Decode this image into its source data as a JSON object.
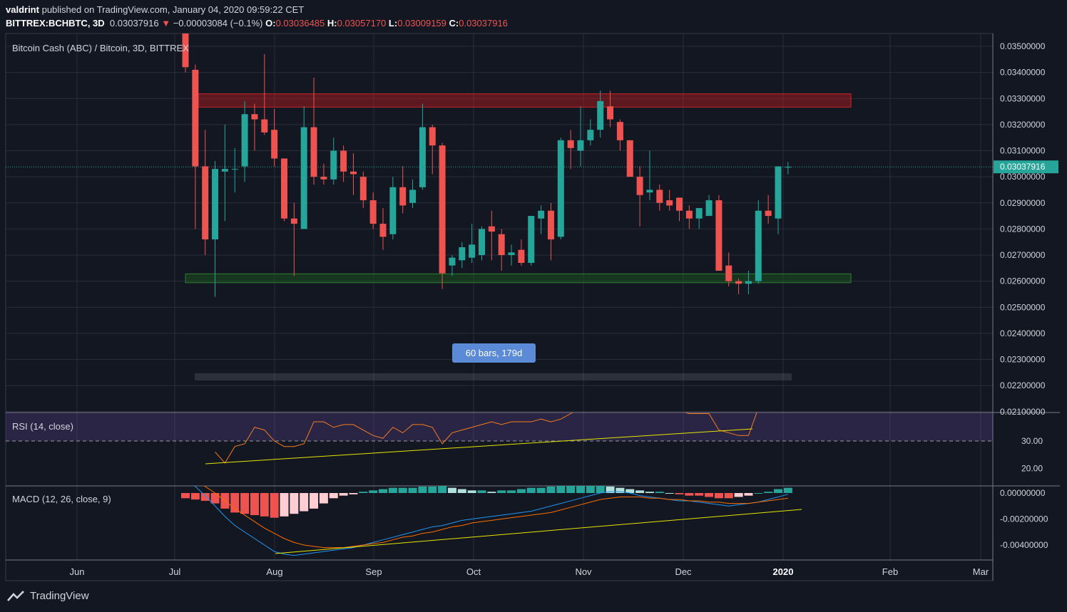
{
  "header": {
    "author": "valdrint",
    "published_text": "published on TradingView.com, January 04, 2020 09:59:22 CET",
    "symbol": "BITTREX:BCHBTC, 3D",
    "last": "0.03037916",
    "change": "−0.00003084 (−0.1%)",
    "o_label": "O:",
    "o_value": "0.03036485",
    "h_label": "H:",
    "h_value": "0.03057170",
    "l_label": "L:",
    "l_value": "0.03009159",
    "c_label": "C:",
    "c_value": "0.03037916"
  },
  "colors": {
    "background": "#131722",
    "grid": "#2a2e39",
    "up": "#26a69a",
    "down": "#ef5350",
    "resistance_zone": "#b71c1c",
    "support_zone": "#1b5e20",
    "rsi_line": "#f57c1f",
    "trendline": "#e6e600",
    "macd_line": "#2196f3",
    "signal_line": "#ff6d00"
  },
  "footer": {
    "brand": "TradingView"
  },
  "chart_data": {
    "type": "candlestick",
    "title": "Bitcoin Cash (ABC) / Bitcoin, 3D, BITTREX",
    "price_axis": {
      "ticks": [
        "0.03500000",
        "0.03400000",
        "0.03300000",
        "0.03200000",
        "0.03100000",
        "0.03000000",
        "0.02900000",
        "0.02800000",
        "0.02700000",
        "0.02600000",
        "0.02500000",
        "0.02400000",
        "0.02300000",
        "0.02200000",
        "0.02100000"
      ],
      "last_price_label": "0.03037916",
      "last_price": 0.03037916
    },
    "x_axis": {
      "labels": [
        "Jun",
        "Jul",
        "Aug",
        "Sep",
        "Oct",
        "Nov",
        "Dec",
        "2020",
        "Feb",
        "Mar"
      ]
    },
    "candles": [
      {
        "o": 0.0357,
        "h": 0.036,
        "l": 0.034,
        "c": 0.0342
      },
      {
        "o": 0.0341,
        "h": 0.0343,
        "l": 0.028,
        "c": 0.0304
      },
      {
        "o": 0.0304,
        "h": 0.0318,
        "l": 0.027,
        "c": 0.0276
      },
      {
        "o": 0.0276,
        "h": 0.0306,
        "l": 0.0254,
        "c": 0.0303
      },
      {
        "o": 0.0302,
        "h": 0.032,
        "l": 0.0283,
        "c": 0.0303
      },
      {
        "o": 0.0303,
        "h": 0.0311,
        "l": 0.0294,
        "c": 0.0303
      },
      {
        "o": 0.0304,
        "h": 0.0329,
        "l": 0.0298,
        "c": 0.0324
      },
      {
        "o": 0.0324,
        "h": 0.0328,
        "l": 0.031,
        "c": 0.0322
      },
      {
        "o": 0.0322,
        "h": 0.0347,
        "l": 0.0316,
        "c": 0.0317
      },
      {
        "o": 0.0318,
        "h": 0.0326,
        "l": 0.0304,
        "c": 0.0307
      },
      {
        "o": 0.0307,
        "h": 0.0307,
        "l": 0.0283,
        "c": 0.0284
      },
      {
        "o": 0.0284,
        "h": 0.029,
        "l": 0.0262,
        "c": 0.0282
      },
      {
        "o": 0.028,
        "h": 0.0327,
        "l": 0.028,
        "c": 0.0319
      },
      {
        "o": 0.0319,
        "h": 0.0338,
        "l": 0.0297,
        "c": 0.03
      },
      {
        "o": 0.03,
        "h": 0.0305,
        "l": 0.0297,
        "c": 0.0299
      },
      {
        "o": 0.0299,
        "h": 0.0315,
        "l": 0.0297,
        "c": 0.031
      },
      {
        "o": 0.031,
        "h": 0.0312,
        "l": 0.0298,
        "c": 0.0302
      },
      {
        "o": 0.0302,
        "h": 0.0309,
        "l": 0.0293,
        "c": 0.0301
      },
      {
        "o": 0.03,
        "h": 0.0302,
        "l": 0.0288,
        "c": 0.0291
      },
      {
        "o": 0.0291,
        "h": 0.0294,
        "l": 0.028,
        "c": 0.0282
      },
      {
        "o": 0.0282,
        "h": 0.0288,
        "l": 0.0272,
        "c": 0.0277
      },
      {
        "o": 0.0278,
        "h": 0.03,
        "l": 0.0276,
        "c": 0.0296
      },
      {
        "o": 0.0296,
        "h": 0.0304,
        "l": 0.0286,
        "c": 0.0289
      },
      {
        "o": 0.029,
        "h": 0.0299,
        "l": 0.0288,
        "c": 0.0295
      },
      {
        "o": 0.0296,
        "h": 0.0328,
        "l": 0.0295,
        "c": 0.0319
      },
      {
        "o": 0.0319,
        "h": 0.032,
        "l": 0.0301,
        "c": 0.0312
      },
      {
        "o": 0.0312,
        "h": 0.0313,
        "l": 0.0257,
        "c": 0.0263
      },
      {
        "o": 0.0266,
        "h": 0.027,
        "l": 0.0262,
        "c": 0.0269
      },
      {
        "o": 0.0268,
        "h": 0.0275,
        "l": 0.0265,
        "c": 0.0273
      },
      {
        "o": 0.0269,
        "h": 0.0282,
        "l": 0.0267,
        "c": 0.0274
      },
      {
        "o": 0.027,
        "h": 0.0281,
        "l": 0.0268,
        "c": 0.028
      },
      {
        "o": 0.0281,
        "h": 0.0287,
        "l": 0.0268,
        "c": 0.0279
      },
      {
        "o": 0.0278,
        "h": 0.028,
        "l": 0.0264,
        "c": 0.027
      },
      {
        "o": 0.027,
        "h": 0.0274,
        "l": 0.0266,
        "c": 0.0271
      },
      {
        "o": 0.0272,
        "h": 0.0276,
        "l": 0.0266,
        "c": 0.0267
      },
      {
        "o": 0.0267,
        "h": 0.0285,
        "l": 0.0266,
        "c": 0.0285
      },
      {
        "o": 0.0284,
        "h": 0.0289,
        "l": 0.0278,
        "c": 0.0287
      },
      {
        "o": 0.0287,
        "h": 0.029,
        "l": 0.0268,
        "c": 0.0276
      },
      {
        "o": 0.0277,
        "h": 0.0315,
        "l": 0.0276,
        "c": 0.0314
      },
      {
        "o": 0.0314,
        "h": 0.0318,
        "l": 0.0303,
        "c": 0.0311
      },
      {
        "o": 0.031,
        "h": 0.0327,
        "l": 0.0304,
        "c": 0.0314
      },
      {
        "o": 0.0314,
        "h": 0.0322,
        "l": 0.0312,
        "c": 0.0318
      },
      {
        "o": 0.0318,
        "h": 0.0333,
        "l": 0.0315,
        "c": 0.0329
      },
      {
        "o": 0.0327,
        "h": 0.0333,
        "l": 0.0319,
        "c": 0.0322
      },
      {
        "o": 0.0321,
        "h": 0.0322,
        "l": 0.031,
        "c": 0.0314
      },
      {
        "o": 0.0314,
        "h": 0.0314,
        "l": 0.03,
        "c": 0.03
      },
      {
        "o": 0.03,
        "h": 0.0304,
        "l": 0.0281,
        "c": 0.0293
      },
      {
        "o": 0.0294,
        "h": 0.031,
        "l": 0.0291,
        "c": 0.0295
      },
      {
        "o": 0.0295,
        "h": 0.0297,
        "l": 0.0287,
        "c": 0.029
      },
      {
        "o": 0.0291,
        "h": 0.0295,
        "l": 0.0287,
        "c": 0.0289
      },
      {
        "o": 0.0292,
        "h": 0.0292,
        "l": 0.0283,
        "c": 0.0287
      },
      {
        "o": 0.0287,
        "h": 0.0289,
        "l": 0.028,
        "c": 0.0284
      },
      {
        "o": 0.0284,
        "h": 0.0288,
        "l": 0.028,
        "c": 0.0288
      },
      {
        "o": 0.0285,
        "h": 0.0293,
        "l": 0.0285,
        "c": 0.0291
      },
      {
        "o": 0.0291,
        "h": 0.0293,
        "l": 0.0264,
        "c": 0.0264
      },
      {
        "o": 0.0266,
        "h": 0.0271,
        "l": 0.0258,
        "c": 0.026
      },
      {
        "o": 0.026,
        "h": 0.0261,
        "l": 0.0255,
        "c": 0.0259
      },
      {
        "o": 0.0259,
        "h": 0.0264,
        "l": 0.0255,
        "c": 0.026
      },
      {
        "o": 0.026,
        "h": 0.0291,
        "l": 0.0259,
        "c": 0.0287
      },
      {
        "o": 0.0287,
        "h": 0.0293,
        "l": 0.0282,
        "c": 0.0285
      },
      {
        "o": 0.0284,
        "h": 0.0304,
        "l": 0.0278,
        "c": 0.0304
      },
      {
        "o": 0.03036485,
        "h": 0.0305717,
        "l": 0.03009159,
        "c": 0.03037916
      }
    ],
    "zones": [
      {
        "name": "resistance",
        "low": 0.03267,
        "high": 0.03318
      },
      {
        "name": "support",
        "low": 0.02594,
        "high": 0.02628
      }
    ],
    "range_label": "60 bars, 179d",
    "rsi": {
      "label": "RSI (14, close)",
      "levels": [
        "30.00",
        "20.00"
      ],
      "values": [
        null,
        null,
        null,
        26,
        22,
        28,
        29,
        35,
        34,
        30,
        28,
        28,
        29,
        37,
        37,
        35,
        36,
        36,
        34,
        32,
        31,
        35,
        33,
        36,
        36,
        35,
        29,
        33,
        34,
        35,
        36,
        37,
        36,
        37,
        37,
        37,
        38,
        37,
        38,
        40,
        42,
        44,
        45,
        46,
        48,
        46,
        45,
        44,
        43,
        42,
        41,
        40,
        40,
        40,
        34,
        33,
        32,
        32,
        42,
        44,
        45,
        46
      ]
    },
    "macd": {
      "label": "MACD (12, 26, close, 9)",
      "ticks": [
        "0.00000000",
        "-0.00200000",
        "-0.00400000"
      ],
      "histogram": [
        -0.0004,
        -0.0005,
        -0.0006,
        -0.0008,
        -0.0012,
        -0.0015,
        -0.0016,
        -0.0017,
        -0.0018,
        -0.0019,
        -0.0018,
        -0.0016,
        -0.0014,
        -0.0012,
        -0.0008,
        -0.0004,
        -0.0002,
        -0.0001,
        0.0001,
        0.0002,
        0.0003,
        0.0004,
        0.0004,
        0.0004,
        0.0005,
        0.0005,
        0.0006,
        0.0004,
        0.0003,
        0.0002,
        0.0002,
        0.0001,
        0.0002,
        0.0002,
        0.0003,
        0.0004,
        0.0004,
        0.0005,
        0.0006,
        0.0006,
        0.0006,
        0.0006,
        0.0006,
        0.0005,
        0.0004,
        0.0003,
        0.0002,
        0.0001,
        0.0001,
        0.0,
        -0.0001,
        -0.0002,
        -0.0002,
        -0.0003,
        -0.0004,
        -0.0004,
        -0.0003,
        -0.0002,
        0.0,
        0.0001,
        0.0003,
        0.0004
      ],
      "macd_line": [
        0.001,
        0.0005,
        -0.0002,
        -0.001,
        -0.0018,
        -0.0025,
        -0.003,
        -0.0035,
        -0.004,
        -0.0045,
        -0.0047,
        -0.0048,
        -0.0047,
        -0.0046,
        -0.0045,
        -0.0044,
        -0.0043,
        -0.0042,
        -0.004,
        -0.0038,
        -0.0036,
        -0.0034,
        -0.0032,
        -0.003,
        -0.0028,
        -0.0026,
        -0.0025,
        -0.0023,
        -0.0021,
        -0.002,
        -0.0019,
        -0.0018,
        -0.0017,
        -0.0016,
        -0.0015,
        -0.0014,
        -0.0012,
        -0.001,
        -0.0008,
        -0.0006,
        -0.0004,
        -0.0002,
        0.0,
        0.0001,
        0.0001,
        0.0,
        -0.0002,
        -0.0003,
        -0.0004,
        -0.0005,
        -0.0006,
        -0.0006,
        -0.0007,
        -0.0008,
        -0.0009,
        -0.001,
        -0.0009,
        -0.0008,
        -0.0007,
        -0.0005,
        -0.0003,
        -0.0001
      ],
      "signal_line": [
        0.0014,
        0.001,
        0.0005,
        0.0,
        -0.0006,
        -0.0012,
        -0.0017,
        -0.0022,
        -0.0027,
        -0.0031,
        -0.0035,
        -0.0038,
        -0.004,
        -0.0041,
        -0.0042,
        -0.0042,
        -0.0042,
        -0.0041,
        -0.004,
        -0.0039,
        -0.0038,
        -0.0036,
        -0.0034,
        -0.0033,
        -0.0031,
        -0.003,
        -0.0028,
        -0.0026,
        -0.0025,
        -0.0023,
        -0.0022,
        -0.0021,
        -0.002,
        -0.0019,
        -0.0018,
        -0.0017,
        -0.0016,
        -0.0015,
        -0.0013,
        -0.0011,
        -0.0009,
        -0.0007,
        -0.0005,
        -0.0004,
        -0.0003,
        -0.0003,
        -0.0003,
        -0.0004,
        -0.0004,
        -0.0005,
        -0.0005,
        -0.0006,
        -0.0006,
        -0.0007,
        -0.0007,
        -0.0008,
        -0.0008,
        -0.0008,
        -0.0007,
        -0.0006,
        -0.0005,
        -0.0004
      ]
    }
  }
}
